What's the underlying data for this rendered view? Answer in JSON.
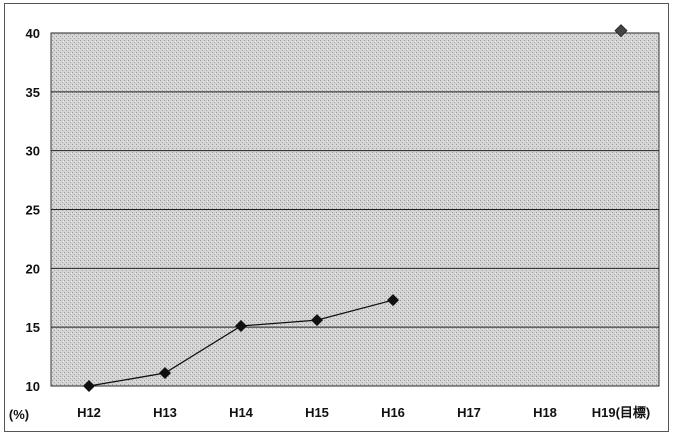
{
  "chart_data": {
    "type": "line",
    "title": "",
    "xlabel": "",
    "ylabel": "(%)",
    "categories": [
      "H12",
      "H13",
      "H14",
      "H15",
      "H16",
      "H17",
      "H18",
      "H19(目標)"
    ],
    "ylim": [
      10,
      40
    ],
    "yticks": [
      10,
      15,
      20,
      25,
      30,
      35,
      40
    ],
    "series": [
      {
        "values": [
          10.0,
          11.1,
          15.1,
          15.6,
          17.3,
          null,
          null,
          null
        ]
      }
    ],
    "target_point": {
      "category": "H19(目標)",
      "value": 40.2
    },
    "grid": "horizontal",
    "legend": "none"
  },
  "colors": {
    "plot_background": "#cfcfcf",
    "line": "#111111",
    "marker": "#111111",
    "gridline": "#222222"
  }
}
